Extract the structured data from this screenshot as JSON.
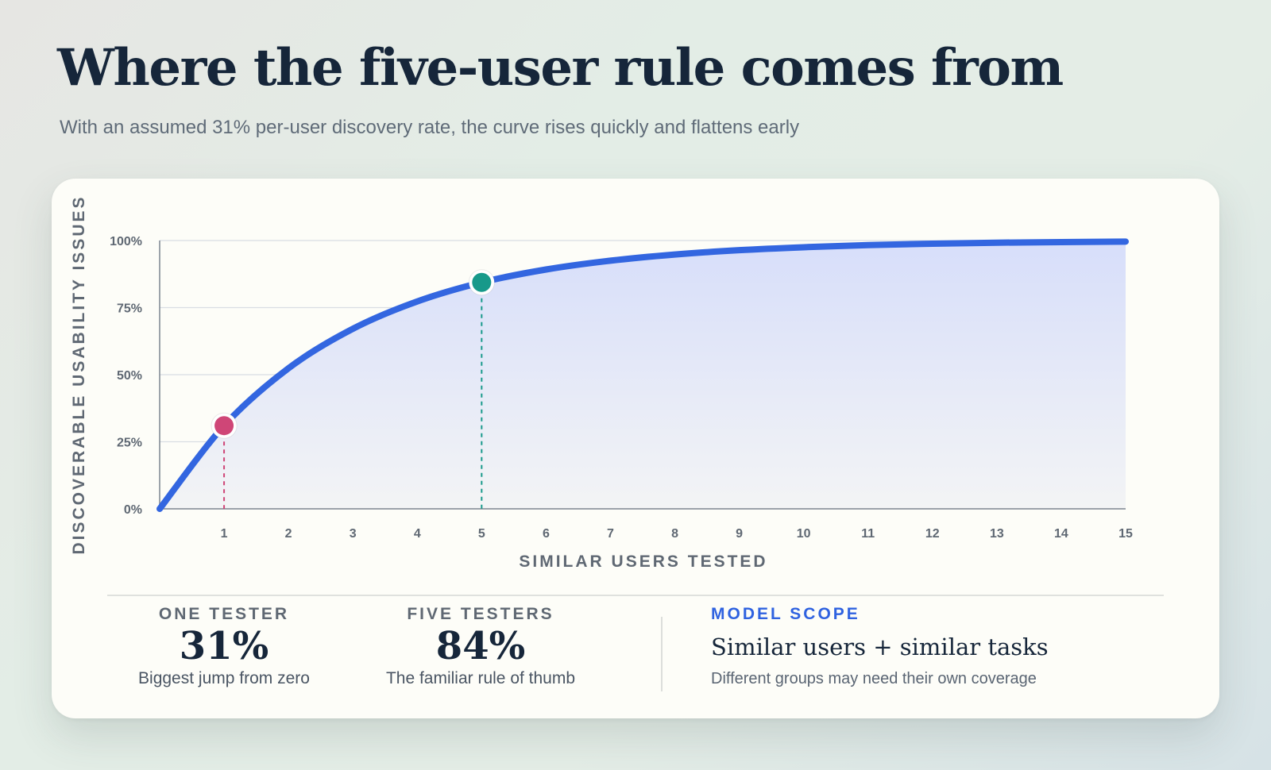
{
  "header": {
    "title": "Where the five-user rule comes from",
    "subtitle": "With an assumed 31% per-user discovery rate, the curve rises quickly and flattens early"
  },
  "chart_data": {
    "type": "area",
    "xlabel": "SIMILAR USERS TESTED",
    "ylabel": "DISCOVERABLE USABILITY ISSUES",
    "xlim": [
      0,
      15
    ],
    "ylim": [
      0,
      100
    ],
    "x_ticks": [
      "1",
      "2",
      "3",
      "4",
      "5",
      "6",
      "7",
      "8",
      "9",
      "10",
      "11",
      "12",
      "13",
      "14",
      "15"
    ],
    "y_ticks": [
      "0%",
      "25%",
      "50%",
      "75%",
      "100%"
    ],
    "grid": true,
    "series": [
      {
        "x": [
          0,
          1,
          2,
          3,
          4,
          5,
          6,
          7,
          8,
          9,
          10,
          11,
          12,
          13,
          14,
          15
        ],
        "values": [
          0,
          31,
          52.4,
          67.1,
          77.3,
          84.4,
          89.2,
          92.5,
          94.8,
          96.4,
          97.5,
          98.3,
          98.8,
          99.2,
          99.4,
          99.6
        ],
        "color": "#3366e0"
      }
    ],
    "highlights": [
      {
        "x": 1,
        "y": 31,
        "color": "#cf4677"
      },
      {
        "x": 5,
        "y": 84.4,
        "color": "#17998a"
      }
    ]
  },
  "stats": [
    {
      "label": "ONE TESTER",
      "value": "31%",
      "caption": "Biggest jump from zero"
    },
    {
      "label": "FIVE TESTERS",
      "value": "84%",
      "caption": "The familiar rule of thumb"
    }
  ],
  "scope": {
    "label": "MODEL SCOPE",
    "title": "Similar users + similar tasks",
    "caption": "Different groups may need their own coverage"
  },
  "colors": {
    "curve": "#3366e0",
    "accent": "#2f62e0",
    "one_tester": "#cf4677",
    "five_testers": "#17998a"
  }
}
